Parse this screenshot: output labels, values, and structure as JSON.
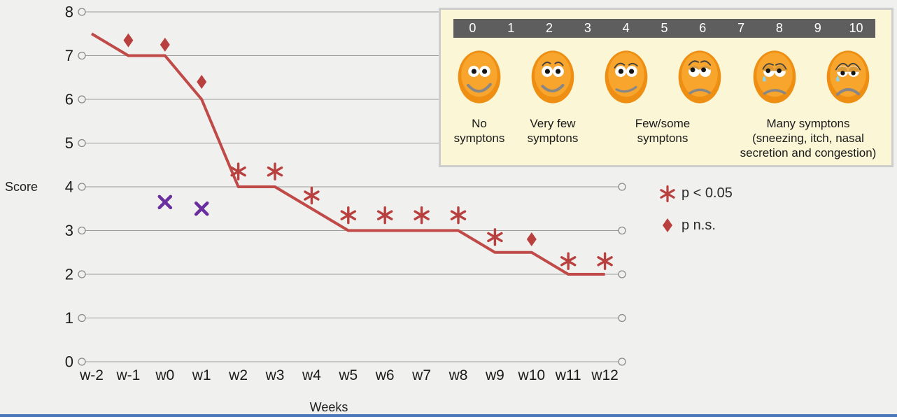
{
  "page": {
    "background": "#f0f0ef",
    "bottom_bar_color": "#4a76ba"
  },
  "chart_data": {
    "type": "line",
    "title": "",
    "xlabel": "Weeks",
    "ylabel": "Score",
    "categories": [
      "w-2",
      "w-1",
      "w0",
      "w1",
      "w2",
      "w3",
      "w4",
      "w5",
      "w6",
      "w7",
      "w8",
      "w9",
      "w10",
      "w11",
      "w12"
    ],
    "ylim": [
      0,
      8
    ],
    "yticks": [
      0,
      1,
      2,
      3,
      4,
      5,
      6,
      7,
      8
    ],
    "grid": true,
    "line_series": {
      "name": "symptom-score-line",
      "color": "#bf4a47",
      "values": [
        7.5,
        7,
        7,
        6,
        4,
        4,
        3.5,
        3,
        3,
        3,
        3,
        2.5,
        2.5,
        2,
        2
      ]
    },
    "significance_markers": {
      "color": "#b8403e",
      "asterisk_points": [
        {
          "week": "w2",
          "score": 4.35
        },
        {
          "week": "w3",
          "score": 4.35
        },
        {
          "week": "w4",
          "score": 3.8
        },
        {
          "week": "w5",
          "score": 3.35
        },
        {
          "week": "w6",
          "score": 3.35
        },
        {
          "week": "w7",
          "score": 3.35
        },
        {
          "week": "w8",
          "score": 3.35
        },
        {
          "week": "w9",
          "score": 2.85
        },
        {
          "week": "w11",
          "score": 2.3
        },
        {
          "week": "w12",
          "score": 2.3
        }
      ],
      "diamond_points": [
        {
          "week": "w-1",
          "score": 7.35
        },
        {
          "week": "w0",
          "score": 7.25
        },
        {
          "week": "w1",
          "score": 6.4
        },
        {
          "week": "w10",
          "score": 2.8
        }
      ]
    },
    "x_markers": {
      "color": "#6b2e9e",
      "points": [
        {
          "week": "w0",
          "score": 3.65
        },
        {
          "week": "w1",
          "score": 3.5
        }
      ]
    },
    "legend": [
      {
        "marker": "asterisk",
        "label": "p < 0.05"
      },
      {
        "marker": "diamond",
        "label": "p n.s."
      }
    ],
    "legend_position": "right-middle"
  },
  "scale_panel": {
    "background": "#fbf6d5",
    "header_background": "#5e5e5e",
    "numbers": [
      "0",
      "1",
      "2",
      "3",
      "4",
      "5",
      "6",
      "7",
      "8",
      "9",
      "10"
    ],
    "faces": [
      {
        "name": "face-no-symptoms-icon",
        "expression": "very-happy"
      },
      {
        "name": "face-very-few-symptoms-icon",
        "expression": "happy"
      },
      {
        "name": "face-few-symptoms-icon",
        "expression": "pleased"
      },
      {
        "name": "face-some-symptoms-icon",
        "expression": "worried"
      },
      {
        "name": "face-many-symptoms-icon",
        "expression": "sad"
      },
      {
        "name": "face-most-symptoms-icon",
        "expression": "very-sad"
      }
    ],
    "labels": [
      {
        "lines": [
          "No",
          "symptons"
        ]
      },
      {
        "lines": [
          "Very few",
          "symptons"
        ]
      },
      {
        "lines": [
          "Few/some",
          "symptons"
        ]
      },
      {
        "lines": [
          "Many symptons",
          "(sneezing, itch, nasal",
          "secretion and congestion)"
        ]
      }
    ]
  }
}
